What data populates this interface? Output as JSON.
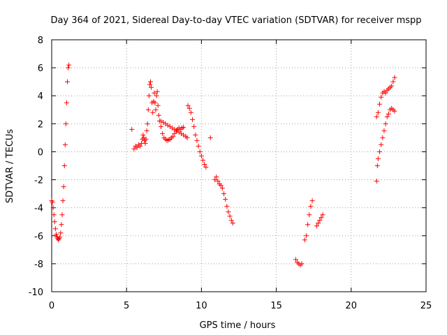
{
  "chart_data": {
    "type": "scatter",
    "title": "Day 364 of 2021, Sidereal Day-to-day VTEC variation (SDTVAR) for receiver mspp",
    "xlabel": "GPS time / hours",
    "ylabel": "SDTVAR / TECUs",
    "xlim": [
      0,
      25
    ],
    "ylim": [
      -10,
      8
    ],
    "xticks": [
      0,
      5,
      10,
      15,
      20,
      25
    ],
    "yticks": [
      -10,
      -8,
      -6,
      -4,
      -2,
      0,
      2,
      4,
      6,
      8
    ],
    "grid": true,
    "marker": "+",
    "color": "#ff0000",
    "series": [
      {
        "name": "SDTVAR",
        "points": [
          [
            0.0,
            -3.5
          ],
          [
            0.05,
            -3.6
          ],
          [
            0.1,
            -4.0
          ],
          [
            0.15,
            -4.5
          ],
          [
            0.2,
            -5.0
          ],
          [
            0.25,
            -5.5
          ],
          [
            0.3,
            -5.9
          ],
          [
            0.35,
            -6.1
          ],
          [
            0.4,
            -6.2
          ],
          [
            0.45,
            -6.3
          ],
          [
            0.5,
            -6.2
          ],
          [
            0.55,
            -6.1
          ],
          [
            0.6,
            -5.8
          ],
          [
            0.65,
            -5.2
          ],
          [
            0.7,
            -4.5
          ],
          [
            0.75,
            -3.5
          ],
          [
            0.8,
            -2.5
          ],
          [
            0.85,
            -1.0
          ],
          [
            0.9,
            0.5
          ],
          [
            0.95,
            2.0
          ],
          [
            1.0,
            3.5
          ],
          [
            1.05,
            5.0
          ],
          [
            1.1,
            6.0
          ],
          [
            1.15,
            6.2
          ],
          [
            5.35,
            1.6
          ],
          [
            5.5,
            0.2
          ],
          [
            5.6,
            0.4
          ],
          [
            5.7,
            0.3
          ],
          [
            5.8,
            0.5
          ],
          [
            5.9,
            0.4
          ],
          [
            6.0,
            0.6
          ],
          [
            6.05,
            0.9
          ],
          [
            6.1,
            1.2
          ],
          [
            6.15,
            1.0
          ],
          [
            6.2,
            0.8
          ],
          [
            6.25,
            0.6
          ],
          [
            6.3,
            0.9
          ],
          [
            6.35,
            1.5
          ],
          [
            6.4,
            2.0
          ],
          [
            6.45,
            3.0
          ],
          [
            6.5,
            4.0
          ],
          [
            6.55,
            4.8
          ],
          [
            6.6,
            5.0
          ],
          [
            6.65,
            4.6
          ],
          [
            6.7,
            3.5
          ],
          [
            6.75,
            2.8
          ],
          [
            6.8,
            3.6
          ],
          [
            6.85,
            4.2
          ],
          [
            6.9,
            3.5
          ],
          [
            6.95,
            3.0
          ],
          [
            7.0,
            4.0
          ],
          [
            7.05,
            4.3
          ],
          [
            7.1,
            3.3
          ],
          [
            7.15,
            2.6
          ],
          [
            7.2,
            2.2
          ],
          [
            7.3,
            1.8
          ],
          [
            7.4,
            1.3
          ],
          [
            7.5,
            1.0
          ],
          [
            7.6,
            0.9
          ],
          [
            7.7,
            0.8
          ],
          [
            7.8,
            0.85
          ],
          [
            7.9,
            0.9
          ],
          [
            8.0,
            1.0
          ],
          [
            8.1,
            1.1
          ],
          [
            8.2,
            1.3
          ],
          [
            8.3,
            1.5
          ],
          [
            8.4,
            1.6
          ],
          [
            8.5,
            1.7
          ],
          [
            8.6,
            1.6
          ],
          [
            8.7,
            1.7
          ],
          [
            8.8,
            1.75
          ],
          [
            7.3,
            2.2
          ],
          [
            7.45,
            2.1
          ],
          [
            7.6,
            2.0
          ],
          [
            7.75,
            1.9
          ],
          [
            7.9,
            1.8
          ],
          [
            8.05,
            1.7
          ],
          [
            8.2,
            1.6
          ],
          [
            8.35,
            1.5
          ],
          [
            8.5,
            1.4
          ],
          [
            8.65,
            1.3
          ],
          [
            8.8,
            1.2
          ],
          [
            8.95,
            1.1
          ],
          [
            9.05,
            1.0
          ],
          [
            9.1,
            3.3
          ],
          [
            9.2,
            3.1
          ],
          [
            9.3,
            2.8
          ],
          [
            9.4,
            2.3
          ],
          [
            9.5,
            1.8
          ],
          [
            9.6,
            1.2
          ],
          [
            9.7,
            0.8
          ],
          [
            9.8,
            0.4
          ],
          [
            9.9,
            0.0
          ],
          [
            10.0,
            -0.3
          ],
          [
            10.1,
            -0.6
          ],
          [
            10.2,
            -0.9
          ],
          [
            10.3,
            -1.1
          ],
          [
            10.6,
            1.0
          ],
          [
            10.9,
            -2.0
          ],
          [
            11.0,
            -1.8
          ],
          [
            11.1,
            -2.1
          ],
          [
            11.2,
            -2.3
          ],
          [
            11.3,
            -2.4
          ],
          [
            11.4,
            -2.6
          ],
          [
            11.5,
            -3.0
          ],
          [
            11.6,
            -3.4
          ],
          [
            11.7,
            -3.9
          ],
          [
            11.8,
            -4.3
          ],
          [
            11.9,
            -4.6
          ],
          [
            12.0,
            -4.9
          ],
          [
            12.1,
            -5.1
          ],
          [
            16.3,
            -7.7
          ],
          [
            16.4,
            -7.9
          ],
          [
            16.5,
            -8.0
          ],
          [
            16.6,
            -8.1
          ],
          [
            16.7,
            -8.0
          ],
          [
            16.9,
            -6.3
          ],
          [
            17.0,
            -6.0
          ],
          [
            17.1,
            -5.2
          ],
          [
            17.2,
            -4.5
          ],
          [
            17.3,
            -3.9
          ],
          [
            17.4,
            -3.5
          ],
          [
            17.7,
            -5.3
          ],
          [
            17.8,
            -5.1
          ],
          [
            17.9,
            -4.9
          ],
          [
            18.0,
            -4.7
          ],
          [
            18.1,
            -4.5
          ],
          [
            21.7,
            -2.1
          ],
          [
            21.75,
            -1.0
          ],
          [
            21.8,
            -0.5
          ],
          [
            21.9,
            0.0
          ],
          [
            22.0,
            0.5
          ],
          [
            22.1,
            1.0
          ],
          [
            22.2,
            1.5
          ],
          [
            22.3,
            2.0
          ],
          [
            22.4,
            2.5
          ],
          [
            22.5,
            2.7
          ],
          [
            22.6,
            3.0
          ],
          [
            22.7,
            3.1
          ],
          [
            22.8,
            3.0
          ],
          [
            22.9,
            2.9
          ],
          [
            21.7,
            2.5
          ],
          [
            21.8,
            2.8
          ],
          [
            21.9,
            3.4
          ],
          [
            22.0,
            3.9
          ],
          [
            22.1,
            4.2
          ],
          [
            22.2,
            4.3
          ],
          [
            22.3,
            4.2
          ],
          [
            22.4,
            4.4
          ],
          [
            22.5,
            4.5
          ],
          [
            22.6,
            4.6
          ],
          [
            22.7,
            4.7
          ],
          [
            22.8,
            5.0
          ],
          [
            22.9,
            5.3
          ]
        ]
      }
    ]
  }
}
